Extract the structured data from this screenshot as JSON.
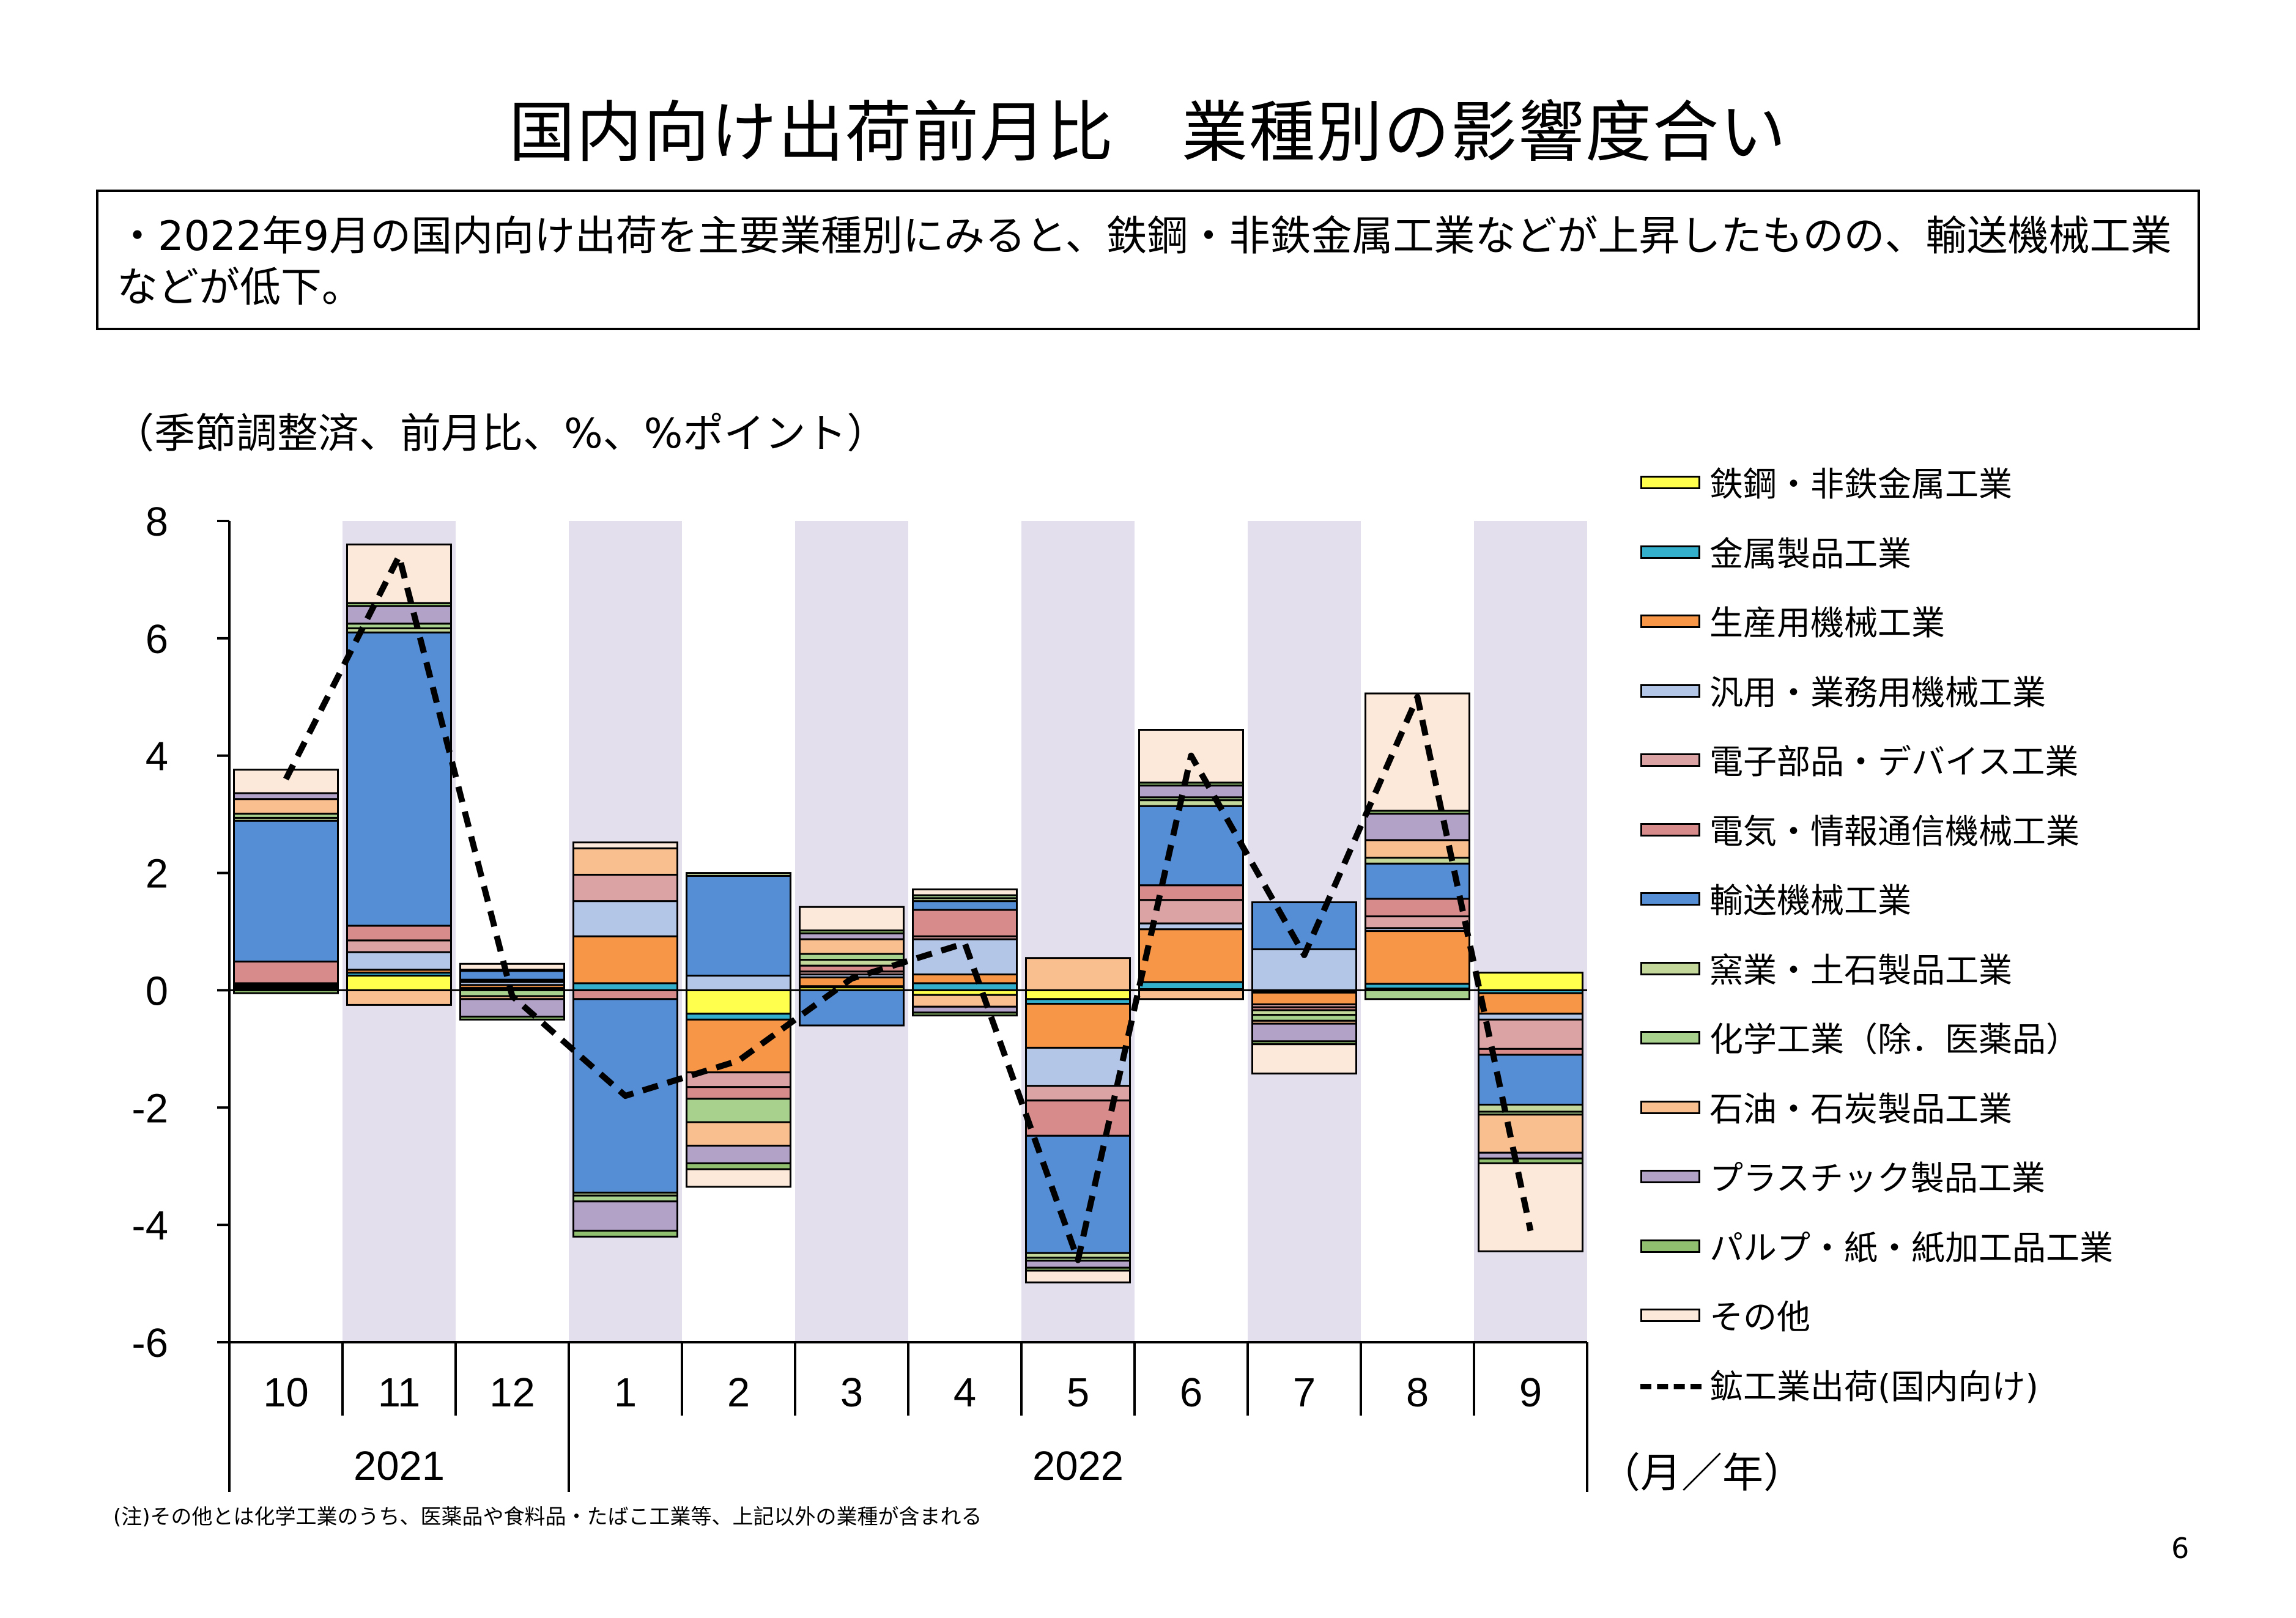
{
  "title": "国内向け出荷前月比　業種別の影響度合い",
  "summary": "・2022年9月の国内向け出荷を主要業種別にみると、鉄鋼・非鉄金属工業などが上昇したものの、輸送機械工業などが低下。",
  "note": "(注)その他とは化学工業のうち、医薬品や食料品・たばこ工業等、上記以外の業種が含まれる",
  "page_number": "6",
  "colors": {
    "steel": "#ffff4d",
    "metal_products": "#33aecb",
    "production_machinery": "#f79646",
    "general_machinery": "#b4c6e7",
    "electronic_parts": "#dba3a3",
    "electrical": "#d78b8b",
    "transport": "#558ed5",
    "ceramics": "#c4d79b",
    "chemical": "#a9d18e",
    "petroleum": "#f9bf8f",
    "plastic": "#b3a2c7",
    "pulp": "#8fbf6f",
    "other": "#fde9d9",
    "shade": "#e4dfec"
  },
  "chart_data": {
    "type": "bar",
    "stacked": true,
    "unit_label": "（季節調整済、前月比、%、%ポイント）",
    "x_unit_label": "（月／年）",
    "categories": [
      "10",
      "11",
      "12",
      "1",
      "2",
      "3",
      "4",
      "5",
      "6",
      "7",
      "8",
      "9"
    ],
    "year_labels": [
      {
        "label": "2021",
        "months": [
          "10",
          "11",
          "12"
        ]
      },
      {
        "label": "2022",
        "months": [
          "1",
          "2",
          "3",
          "4",
          "5",
          "6",
          "7",
          "8",
          "9"
        ]
      }
    ],
    "shaded_categories": [
      "11",
      "1",
      "3",
      "5",
      "7",
      "9"
    ],
    "ylim": [
      -6,
      8
    ],
    "yticks": [
      "8",
      "6",
      "4",
      "2",
      "0",
      "-2",
      "-4",
      "-6"
    ],
    "series": [
      {
        "name": "鉄鋼・非鉄金属工業",
        "key": "steel",
        "values": [
          0.02,
          0.25,
          0.02,
          0.0,
          -0.4,
          0.05,
          -0.08,
          -0.15,
          0.02,
          -0.02,
          0.03,
          0.3
        ]
      },
      {
        "name": "金属製品工業",
        "key": "metal_products",
        "values": [
          0.03,
          0.05,
          0.02,
          0.12,
          -0.1,
          0.02,
          0.12,
          -0.08,
          0.12,
          -0.02,
          0.08,
          -0.05
        ]
      },
      {
        "name": "生産用機械工業",
        "key": "production_machinery",
        "values": [
          0.02,
          0.05,
          0.05,
          0.8,
          -0.9,
          0.15,
          0.15,
          -0.75,
          0.9,
          -0.2,
          0.9,
          -0.35
        ]
      },
      {
        "name": "汎用・業務用機械工業",
        "key": "general_machinery",
        "values": [
          0.02,
          0.3,
          0.05,
          0.6,
          0.25,
          0.05,
          0.6,
          -0.65,
          0.1,
          0.7,
          0.05,
          -0.1
        ]
      },
      {
        "name": "電子部品・デバイス工業",
        "key": "electronic_parts",
        "values": [
          0.03,
          0.2,
          0.02,
          0.45,
          -0.25,
          0.05,
          0.05,
          -0.25,
          0.4,
          -0.05,
          0.2,
          -0.5
        ]
      },
      {
        "name": "電気・情報通信機械工業",
        "key": "electrical",
        "values": [
          0.37,
          0.25,
          0.02,
          -0.15,
          -0.2,
          0.1,
          0.45,
          -0.6,
          0.25,
          -0.05,
          0.3,
          -0.1
        ]
      },
      {
        "name": "輸送機械工業",
        "key": "transport",
        "values": [
          2.4,
          5.0,
          0.15,
          -3.3,
          1.7,
          -0.6,
          0.15,
          -2.0,
          1.35,
          0.8,
          0.6,
          -0.85
        ]
      },
      {
        "name": "窯業・土石製品工業",
        "key": "ceramics",
        "values": [
          0.05,
          0.07,
          0.02,
          -0.05,
          0.05,
          0.1,
          0.05,
          -0.08,
          0.1,
          -0.08,
          0.1,
          -0.12
        ]
      },
      {
        "name": "化学工業（除．医薬品）",
        "key": "chemical",
        "values": [
          0.07,
          0.08,
          -0.1,
          -0.1,
          -0.4,
          0.1,
          0.05,
          -0.05,
          0.05,
          -0.1,
          -0.15,
          -0.05
        ]
      },
      {
        "name": "石油・石炭製品工業",
        "key": "petroleum",
        "values": [
          0.25,
          -0.25,
          -0.05,
          0.45,
          -0.4,
          0.25,
          -0.2,
          0.55,
          -0.15,
          -0.05,
          0.3,
          -0.65
        ]
      },
      {
        "name": "プラスチック製品工業",
        "key": "plastic",
        "values": [
          0.1,
          0.3,
          -0.3,
          -0.5,
          -0.3,
          0.1,
          -0.1,
          -0.12,
          0.2,
          -0.3,
          0.45,
          -0.1
        ]
      },
      {
        "name": "パルプ・紙・紙加工品工業",
        "key": "pulp",
        "values": [
          -0.05,
          0.05,
          -0.05,
          -0.1,
          -0.1,
          0.05,
          -0.05,
          -0.05,
          0.05,
          -0.05,
          0.05,
          -0.08
        ]
      },
      {
        "name": "その他",
        "key": "other",
        "values": [
          0.4,
          1.0,
          0.1,
          0.1,
          -0.3,
          0.4,
          0.1,
          -0.2,
          0.9,
          -0.5,
          2.0,
          -1.5
        ]
      }
    ],
    "line": {
      "name": "鉱工業出荷(国内向け)",
      "values": [
        3.6,
        7.4,
        -0.1,
        -1.8,
        -1.2,
        0.2,
        0.8,
        -4.6,
        4.0,
        0.6,
        5.0,
        -4.1
      ]
    }
  }
}
